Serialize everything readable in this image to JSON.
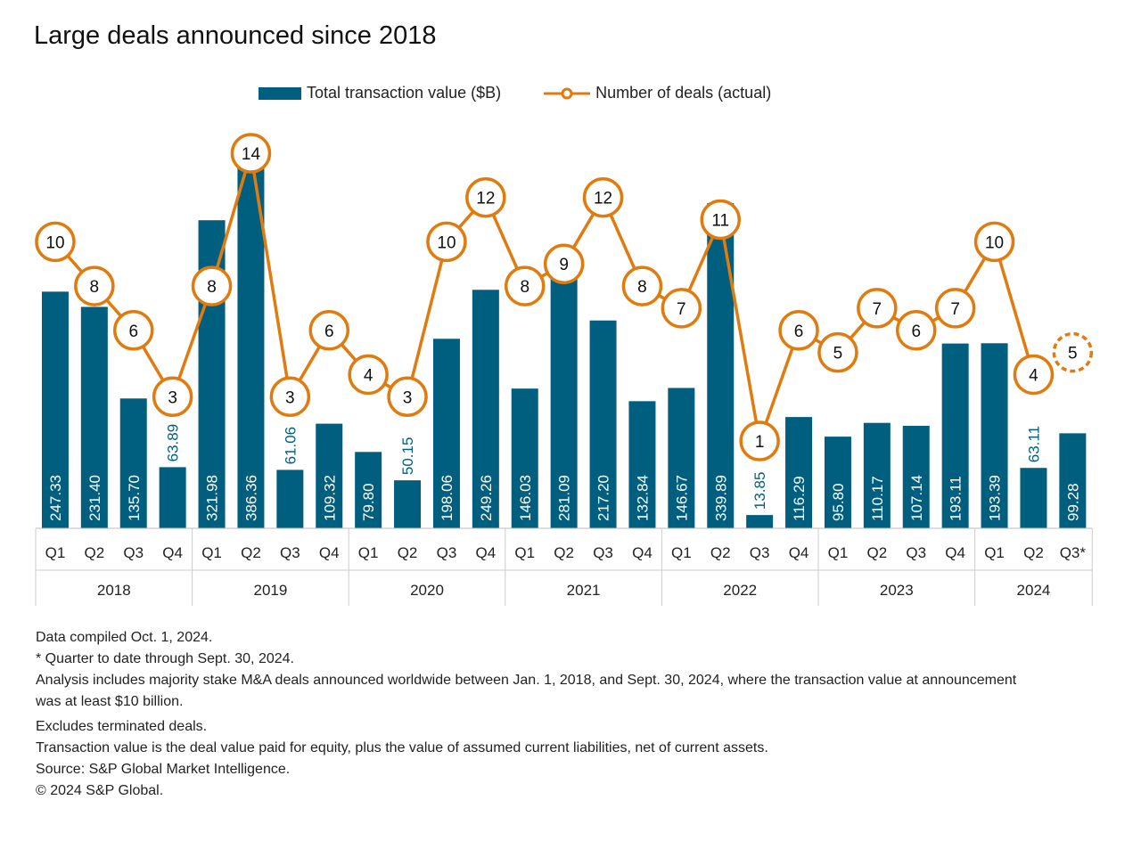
{
  "chart_data": {
    "type": "bar+line",
    "title": "Large deals announced since 2018",
    "categories": [
      "Q1",
      "Q2",
      "Q3",
      "Q4",
      "Q1",
      "Q2",
      "Q3",
      "Q4",
      "Q1",
      "Q2",
      "Q3",
      "Q4",
      "Q1",
      "Q2",
      "Q3",
      "Q4",
      "Q1",
      "Q2",
      "Q3",
      "Q4",
      "Q1",
      "Q2",
      "Q3",
      "Q4",
      "Q1",
      "Q2",
      "Q3*"
    ],
    "years": [
      {
        "label": "2018",
        "quarters": 4
      },
      {
        "label": "2019",
        "quarters": 4
      },
      {
        "label": "2020",
        "quarters": 4
      },
      {
        "label": "2021",
        "quarters": 4
      },
      {
        "label": "2022",
        "quarters": 4
      },
      {
        "label": "2023",
        "quarters": 4
      },
      {
        "label": "2024",
        "quarters": 3
      }
    ],
    "series": [
      {
        "name": "Total transaction value ($B)",
        "type": "bar",
        "color": "#005f7f",
        "values": [
          247.33,
          231.4,
          135.7,
          63.89,
          321.98,
          386.36,
          61.06,
          109.32,
          79.8,
          50.15,
          198.06,
          249.26,
          146.03,
          281.09,
          217.2,
          132.84,
          146.67,
          339.89,
          13.85,
          116.29,
          95.8,
          110.17,
          107.14,
          193.11,
          193.39,
          63.11,
          99.28
        ]
      },
      {
        "name": "Number of deals (actual)",
        "type": "line",
        "color": "#e07b10",
        "values": [
          10,
          8,
          6,
          3,
          8,
          14,
          3,
          6,
          4,
          3,
          10,
          12,
          8,
          9,
          12,
          8,
          7,
          11,
          1,
          6,
          5,
          7,
          6,
          7,
          10,
          4,
          5
        ]
      }
    ],
    "legend": "top"
  },
  "notes": [
    "Data compiled Oct. 1, 2024.",
    "* Quarter to date through Sept. 30, 2024.",
    "Analysis includes majority stake M&A deals announced worldwide between Jan. 1, 2018, and Sept. 30, 2024, where the transaction value at announcement was at least $10 billion.",
    "Excludes terminated deals.",
    "Transaction value is the deal value paid for equity, plus the value of assumed current liabilities, net of current assets.",
    "Source: S&P Global Market Intelligence.",
    "© 2024 S&P Global."
  ]
}
